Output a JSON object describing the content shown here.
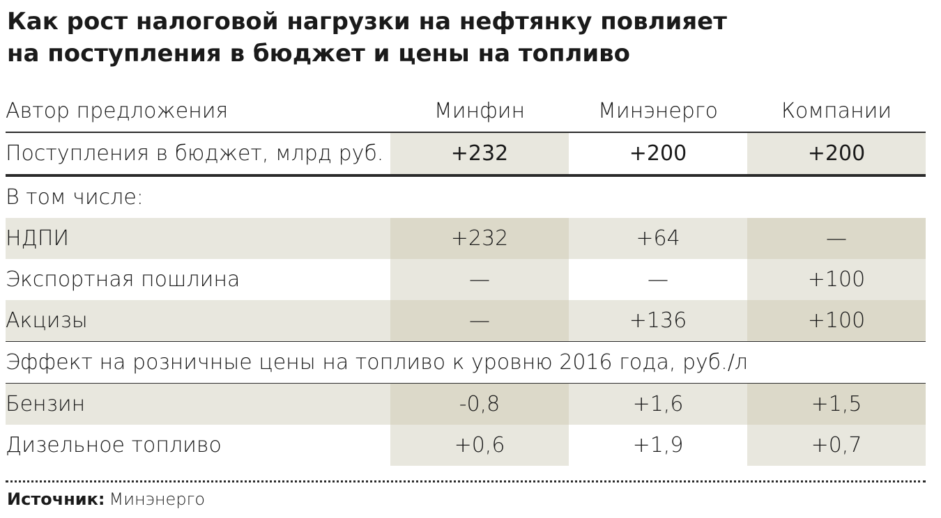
{
  "title_lines": [
    "Как рост налоговой нагрузки на нефтянку повлияет",
    "на поступления в бюджет и цены на топливо"
  ],
  "colors": {
    "fill_dark": "#dcd9c9",
    "fill_light": "#e8e7de",
    "rule": "#2a2a2a"
  },
  "chart_data": {
    "type": "table",
    "title": "Как рост налоговой нагрузки на нефтянку повлияет на поступления в бюджет и цены на топливо",
    "header": {
      "label": "Автор предложения",
      "columns": [
        "Минфин",
        "Минэнерго",
        "Компании"
      ]
    },
    "rows": [
      {
        "kind": "total",
        "label": "Поступления в бюджет, млрд руб.",
        "values": [
          "+232",
          "+200",
          "+200"
        ]
      },
      {
        "kind": "section",
        "label": "В том числе:"
      },
      {
        "kind": "data",
        "label": "НДПИ",
        "values": [
          "+232",
          "+64",
          "—"
        ]
      },
      {
        "kind": "data",
        "label": "Экспортная пошлина",
        "values": [
          "—",
          "—",
          "+100"
        ]
      },
      {
        "kind": "data",
        "label": "Акцизы",
        "values": [
          "—",
          "+136",
          "+100"
        ]
      },
      {
        "kind": "section",
        "label": "Эффект на розничные цены на топливо к уровню 2016 года, руб./л"
      },
      {
        "kind": "data",
        "label": "Бензин",
        "values": [
          "-0,8",
          "+1,6",
          "+1,5"
        ]
      },
      {
        "kind": "data",
        "label": "Дизельное топливо",
        "values": [
          "+0,6",
          "+1,9",
          "+0,7"
        ]
      }
    ]
  },
  "source": {
    "label": "Источник:",
    "value": "Минэнерго"
  }
}
